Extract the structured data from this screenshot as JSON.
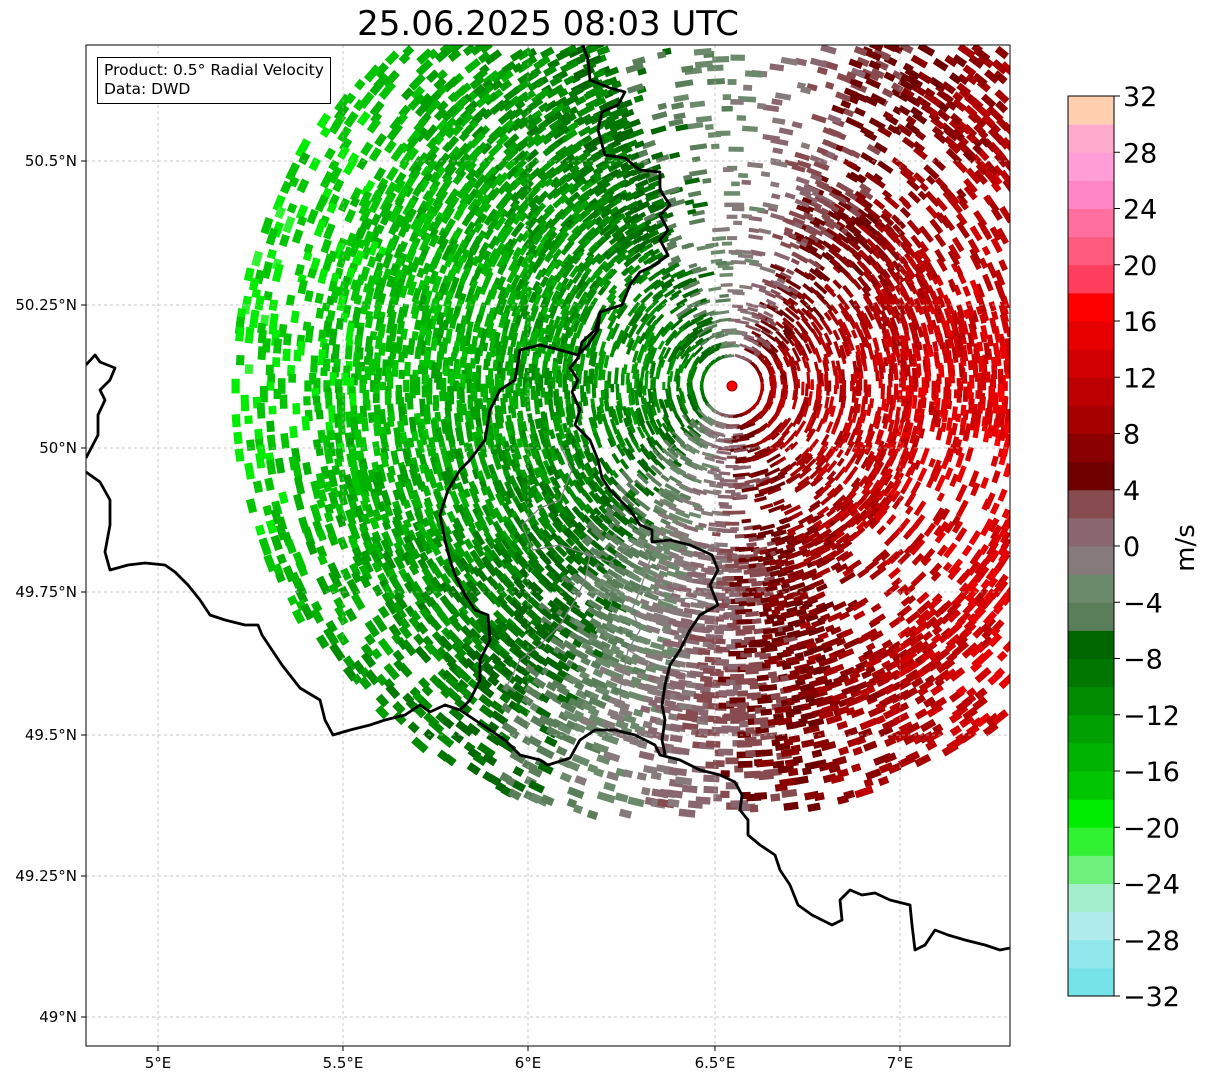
{
  "title": "25.06.2025 08:03 UTC",
  "info": {
    "product": "Product: 0.5° Radial Velocity",
    "source": "Data: DWD"
  },
  "axes": {
    "lon_ticks": [
      "5°E",
      "5.5°E",
      "6°E",
      "6.5°E",
      "7°E"
    ],
    "lat_ticks": [
      "50.5°N",
      "50.25°N",
      "50°N",
      "49.75°N",
      "49.5°N",
      "49.25°N",
      "49°N"
    ]
  },
  "colorbar": {
    "label": "m/s",
    "ticks": [
      "32",
      "28",
      "24",
      "20",
      "16",
      "12",
      "8",
      "4",
      "0",
      "−4",
      "−8",
      "−12",
      "−16",
      "−20",
      "−24",
      "−28",
      "−32"
    ],
    "colors_bottom_to_top": [
      "#76e3e8",
      "#91e8ec",
      "#b1ecec",
      "#a3efcb",
      "#6ef07d",
      "#30f233",
      "#00ec00",
      "#00c500",
      "#00b300",
      "#00a000",
      "#008c00",
      "#007800",
      "#006600",
      "#5a7e5a",
      "#6b8a6b",
      "#877a7a",
      "#8a6770",
      "#874a4f",
      "#6e0000",
      "#8a0000",
      "#a60000",
      "#bc0000",
      "#d20000",
      "#e60000",
      "#ff0000",
      "#ff3e5e",
      "#ff5b7d",
      "#ff70a0",
      "#ff86c6",
      "#ff9ed6",
      "#ffaacc",
      "#ffcfb0"
    ]
  },
  "radar_site": {
    "name": "radar site marker",
    "color": "#ff0000"
  }
}
